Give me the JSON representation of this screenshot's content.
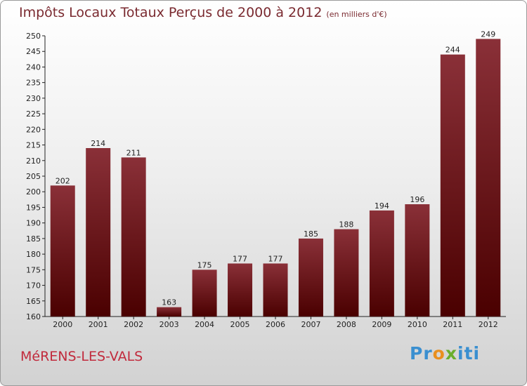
{
  "chart_data": {
    "type": "bar",
    "title": "Impôts Locaux Totaux Perçus de 2000 à 2012",
    "subtitle": "(en milliers d'€)",
    "categories": [
      "2000",
      "2001",
      "2002",
      "2003",
      "2004",
      "2005",
      "2006",
      "2007",
      "2008",
      "2009",
      "2010",
      "2011",
      "2012"
    ],
    "values": [
      202,
      214,
      211,
      163,
      175,
      177,
      177,
      185,
      188,
      194,
      196,
      244,
      249
    ],
    "ylim": [
      160,
      250
    ],
    "yticks": [
      160,
      165,
      170,
      175,
      180,
      185,
      190,
      195,
      200,
      205,
      210,
      215,
      220,
      225,
      230,
      235,
      240,
      245,
      250
    ],
    "xlabel": "",
    "ylabel": "",
    "grid": false,
    "bar_color_top": "#8a3038",
    "bar_color_bottom": "#4a0000"
  },
  "footer": {
    "commune": "MéRENS-LES-VALS",
    "logo_letters": [
      {
        "ch": "P",
        "color": "#3a8fd0"
      },
      {
        "ch": "r",
        "color": "#3a8fd0"
      },
      {
        "ch": "o",
        "color": "#e98f1e"
      },
      {
        "ch": "x",
        "color": "#6aae2c"
      },
      {
        "ch": "i",
        "color": "#3a8fd0"
      },
      {
        "ch": "t",
        "color": "#3a8fd0"
      },
      {
        "ch": "i",
        "color": "#3a8fd0"
      }
    ]
  }
}
